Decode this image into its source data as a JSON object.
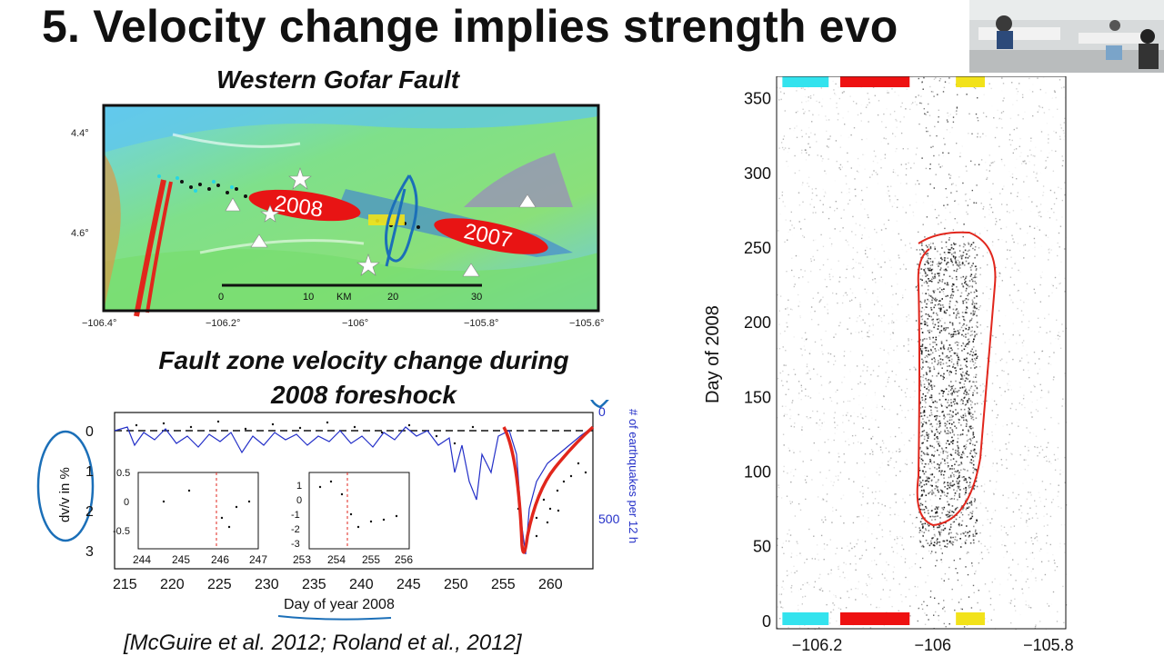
{
  "slide": {
    "title": "5. Velocity change implies strength evo",
    "citation": "[McGuire et al. 2012; Roland et al., 2012]"
  },
  "map": {
    "title": "Western Gofar Fault",
    "lat_labels": [
      "4.4°",
      "4.6°"
    ],
    "lon_labels": [
      "−106.4°",
      "−106.2°",
      "−106°",
      "−105.8°",
      "−105.6°"
    ],
    "ellipse_labels": [
      "2008",
      "2007"
    ],
    "scalebar": {
      "ticks": [
        "0",
        "10",
        "20",
        "30"
      ],
      "unit": "KM"
    }
  },
  "velocity_plot": {
    "title_line1": "Fault zone velocity change during",
    "title_line2": "2008 foreshock",
    "xlabel": "Day of year 2008",
    "ylabel_left": "dv/v in %",
    "ylabel_right": "# of earthquakes per 12 h",
    "x_ticks": [
      "215",
      "220",
      "225",
      "230",
      "235",
      "240",
      "245",
      "250",
      "255",
      "260"
    ],
    "y_ticks_left": [
      "0",
      "1",
      "2",
      "3"
    ],
    "y_ticks_right": [
      "0",
      "500"
    ],
    "inset1": {
      "x_ticks": [
        "244",
        "245",
        "246",
        "247"
      ],
      "y_ticks": [
        "0.5",
        "0",
        "-0.5"
      ]
    },
    "inset2": {
      "x_ticks": [
        "253",
        "254",
        "255",
        "256"
      ],
      "y_ticks": [
        "1",
        "0",
        "-1",
        "-2",
        "-3"
      ]
    }
  },
  "chart_data": {
    "type": "scatter",
    "ylabel": "Day of 2008",
    "xlim": [
      -106.27,
      -105.77
    ],
    "ylim": [
      -5,
      365
    ],
    "x_ticks": [
      "−106.2",
      "−106",
      "−105.8"
    ],
    "y_ticks": [
      "0",
      "50",
      "100",
      "150",
      "200",
      "250",
      "300",
      "350"
    ],
    "y_tick_values": [
      0,
      50,
      100,
      150,
      200,
      250,
      300,
      350
    ],
    "x_tick_values": [
      -106.2,
      -106.0,
      -105.8
    ],
    "segment_colors": [
      "#33e3ee",
      "#ee1111",
      "#f2e21a"
    ],
    "segments_lon": [
      [
        -106.26,
        -106.18
      ],
      [
        -106.16,
        -106.04
      ],
      [
        -105.96,
        -105.91
      ]
    ]
  },
  "colors": {
    "ink_red": "#e1261c",
    "ink_blue": "#1b6fb8",
    "series_blue": "#2430c8"
  }
}
